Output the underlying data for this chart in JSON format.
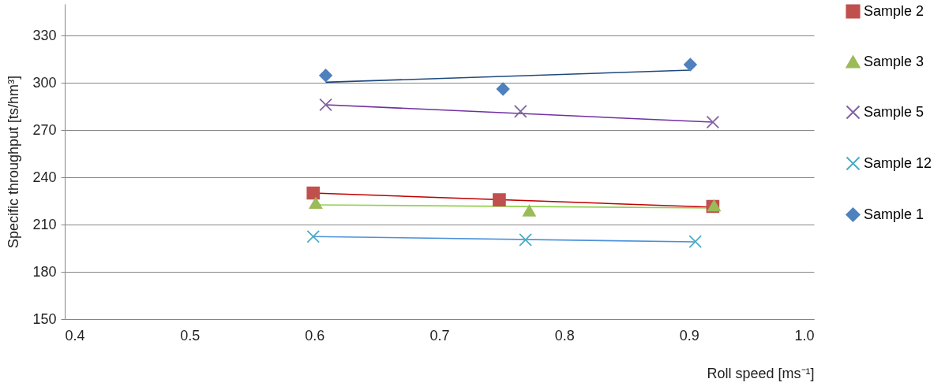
{
  "chart_data": {
    "type": "scatter",
    "xlabel": "Roll speed [ms⁻¹]",
    "ylabel": "Specific throughput [ts/hm³]",
    "xlim": [
      0.4,
      1.0
    ],
    "xticks": [
      {
        "value": 0.4,
        "label": "0.4"
      },
      {
        "value": 0.5,
        "label": "0.5"
      },
      {
        "value": 0.6,
        "label": "0.6"
      },
      {
        "value": 0.7,
        "label": "0.7"
      },
      {
        "value": 0.8,
        "label": "0.8"
      },
      {
        "value": 0.9,
        "label": "0.9"
      },
      {
        "value": 1.0,
        "label": "1.0"
      }
    ],
    "ylim": [
      150,
      350
    ],
    "yticks": [
      150,
      180,
      210,
      240,
      270,
      300,
      330
    ],
    "grid": "y",
    "legend": "right",
    "series": [
      {
        "name": "Sample 2",
        "color": "#c0504d",
        "marker": "square",
        "x": [
          0.599,
          0.748,
          0.919
        ],
        "values": [
          230,
          225.7,
          221.5
        ]
      },
      {
        "name": "Sample 3",
        "color": "#9bbb59",
        "marker": "triangle",
        "x": [
          0.601,
          0.772,
          0.92
        ],
        "values": [
          223.6,
          218.8,
          222
        ]
      },
      {
        "name": "Sample 5",
        "color": "#8064a2",
        "marker": "cross",
        "x": [
          0.609,
          0.765,
          0.919
        ],
        "values": [
          286,
          281.8,
          275
        ]
      },
      {
        "name": "Sample 12",
        "color": "#4bacc6",
        "marker": "cross",
        "x": [
          0.599,
          0.769,
          0.905
        ],
        "values": [
          202.4,
          200.3,
          199.2
        ]
      },
      {
        "name": "Sample 1",
        "color": "#4f81bd",
        "marker": "diamond",
        "x": [
          0.609,
          0.751,
          0.901
        ],
        "values": [
          304.6,
          296,
          311.5
        ]
      },
      {
        "type": "line",
        "color": "#c00000",
        "x": [
          0.599,
          0.919
        ],
        "values": [
          230,
          221
        ]
      },
      {
        "type": "line",
        "color": "#92d050",
        "x": [
          0.601,
          0.92
        ],
        "values": [
          222.5,
          220.5
        ]
      },
      {
        "type": "line",
        "color": "#7030a0",
        "x": [
          0.609,
          0.919
        ],
        "values": [
          286,
          275
        ]
      },
      {
        "type": "line",
        "color": "#4a90d9",
        "x": [
          0.599,
          0.905
        ],
        "values": [
          202.4,
          199
        ]
      },
      {
        "type": "line",
        "color": "#1f497d",
        "x": [
          0.609,
          0.901
        ],
        "values": [
          300.3,
          308
        ]
      }
    ]
  }
}
